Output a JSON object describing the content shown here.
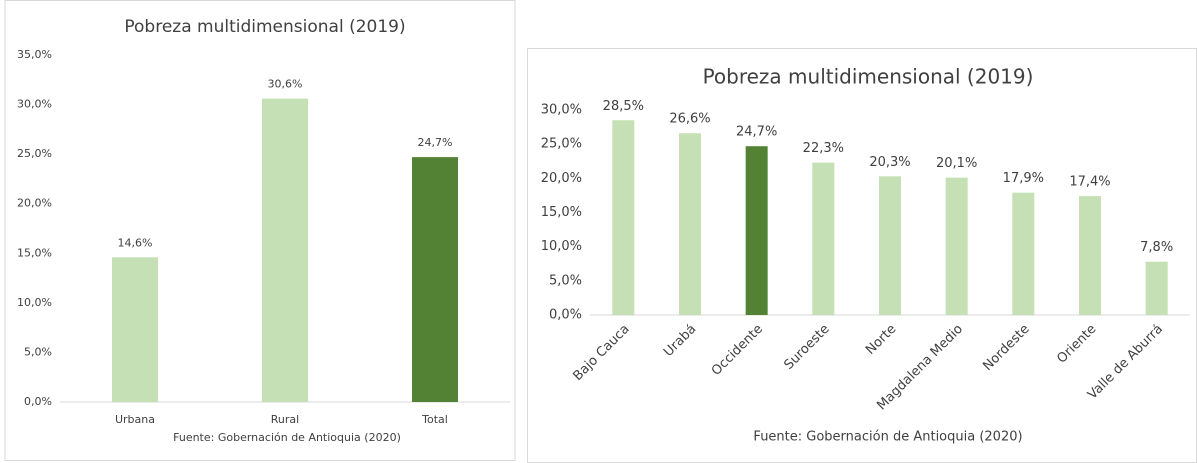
{
  "chart_data": [
    {
      "type": "bar",
      "title": "Pobreza multidimensional  (2019)",
      "categories": [
        "Urbana",
        "Rural",
        "Total"
      ],
      "values": [
        14.6,
        30.6,
        24.7
      ],
      "value_labels": [
        "14,6%",
        "30,6%",
        "24,7%"
      ],
      "colors": [
        "#c5e0b4",
        "#c5e0b4",
        "#548235"
      ],
      "ylim": [
        0,
        35
      ],
      "yticks": [
        {
          "value": 0,
          "label": "0,0%"
        },
        {
          "value": 5,
          "label": "5,0%"
        },
        {
          "value": 10,
          "label": "10,0%"
        },
        {
          "value": 15,
          "label": "15,0%"
        },
        {
          "value": 20,
          "label": "20,0%"
        },
        {
          "value": 25,
          "label": "25,0%"
        },
        {
          "value": 30,
          "label": "30,0%"
        },
        {
          "value": 35,
          "label": "35,0%"
        }
      ],
      "source": "Fuente: Gobernación de Antioquia (2020)"
    },
    {
      "type": "bar",
      "title": "Pobreza multidimensional (2019)",
      "categories": [
        "Bajo Cauca",
        "Urabá",
        "Occidente",
        "Suroeste",
        "Norte",
        "Magdalena Medio",
        "Nordeste",
        "Oriente",
        "Valle de Aburrá"
      ],
      "values": [
        28.5,
        26.6,
        24.7,
        22.3,
        20.3,
        20.1,
        17.9,
        17.4,
        7.8
      ],
      "value_labels": [
        "28,5%",
        "26,6%",
        "24,7%",
        "22,3%",
        "20,3%",
        "20,1%",
        "17,9%",
        "17,4%",
        "7,8%"
      ],
      "colors": [
        "#c5e0b4",
        "#c5e0b4",
        "#548235",
        "#c5e0b4",
        "#c5e0b4",
        "#c5e0b4",
        "#c5e0b4",
        "#c5e0b4",
        "#c5e0b4"
      ],
      "ylim": [
        0,
        30
      ],
      "yticks": [
        {
          "value": 0,
          "label": "0,0%"
        },
        {
          "value": 5,
          "label": "5,0%"
        },
        {
          "value": 10,
          "label": "10,0%"
        },
        {
          "value": 15,
          "label": "15,0%"
        },
        {
          "value": 20,
          "label": "20,0%"
        },
        {
          "value": 25,
          "label": "25,0%"
        },
        {
          "value": 30,
          "label": "30,0%"
        }
      ],
      "source": "Fuente:  Gobernación de Antioquia (2020)"
    }
  ]
}
